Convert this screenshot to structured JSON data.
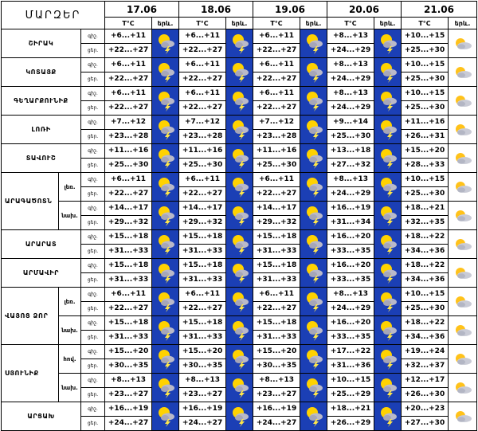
{
  "header": {
    "regions_label": "ՄԱՐԶԵՐ",
    "days": [
      {
        "date": "17.06",
        "temp_label": "T°C",
        "phen_label": "երև."
      },
      {
        "date": "18.06",
        "temp_label": "T°C",
        "phen_label": "երև."
      },
      {
        "date": "19.06",
        "temp_label": "T°C",
        "phen_label": "երև."
      },
      {
        "date": "20.06",
        "temp_label": "T°C",
        "phen_label": "երև."
      },
      {
        "date": "21.06",
        "temp_label": "T°C",
        "phen_label": "երև."
      }
    ]
  },
  "period_labels": {
    "night": "գիշ.",
    "day": "ցեր."
  },
  "icons": {
    "storm": "sun-cloud-lightning-icon",
    "partly_cloudy": "sun-cloud-icon"
  },
  "colors": {
    "icon_bg": "#1b3fb5",
    "sun": "#ffd200",
    "cloud": "#b9b9c9"
  },
  "regions": [
    {
      "name": "ՇԻՐԱԿ",
      "subs": [
        {
          "label": "",
          "night": "+6...+11",
          "day": "+22...+27"
        }
      ],
      "days": [
        [
          "+6...+11",
          "+22...+27"
        ],
        [
          "+6...+11",
          "+22...+27"
        ],
        [
          "+6...+11",
          "+22...+27"
        ],
        [
          "+8...+13",
          "+24...+29"
        ],
        [
          "+10...+15",
          "+25...+30"
        ]
      ]
    },
    {
      "name": "ԿՈՏԱՅՔ",
      "rows": [
        [
          [
            "+6...+11",
            "+22...+27"
          ],
          [
            "+6...+11",
            "+22...+27"
          ],
          [
            "+6...+11",
            "+22...+27"
          ],
          [
            "+8...+13",
            "+24...+29"
          ],
          [
            "+10...+15",
            "+25...+30"
          ]
        ]
      ]
    },
    {
      "name": "ԳԵՂԱՐՔՈՒՆԻՔ",
      "rows": [
        [
          [
            "+6...+11",
            "+22...+27"
          ],
          [
            "+6...+11",
            "+22...+27"
          ],
          [
            "+6...+11",
            "+22...+27"
          ],
          [
            "+8...+13",
            "+24...+29"
          ],
          [
            "+10...+15",
            "+25...+30"
          ]
        ]
      ]
    },
    {
      "name": "ԼՈՌԻ",
      "rows": [
        [
          [
            "+7...+12",
            "+23...+28"
          ],
          [
            "+7...+12",
            "+23...+28"
          ],
          [
            "+7...+12",
            "+23...+28"
          ],
          [
            "+9...+14",
            "+25...+30"
          ],
          [
            "+11...+16",
            "+26...+31"
          ]
        ]
      ]
    },
    {
      "name": "ՏԱՎՈՒՇ",
      "rows": [
        [
          [
            "+11...+16",
            "+25...+30"
          ],
          [
            "+11...+16",
            "+25...+30"
          ],
          [
            "+11...+16",
            "+25...+30"
          ],
          [
            "+13...+18",
            "+27...+32"
          ],
          [
            "+15...+20",
            "+28...+33"
          ]
        ]
      ]
    },
    {
      "name": "ԱՐԱԳԱԾՈՏՆ",
      "subs": [
        "լեռ.",
        "նախ."
      ],
      "rows": [
        [
          [
            "+6...+11",
            "+22...+27"
          ],
          [
            "+6...+11",
            "+22...+27"
          ],
          [
            "+6...+11",
            "+22...+27"
          ],
          [
            "+8...+13",
            "+24...+29"
          ],
          [
            "+10...+15",
            "+25...+30"
          ]
        ],
        [
          [
            "+14...+17",
            "+29...+32"
          ],
          [
            "+14...+17",
            "+29...+32"
          ],
          [
            "+14...+17",
            "+29...+32"
          ],
          [
            "+16...+19",
            "+31...+34"
          ],
          [
            "+18...+21",
            "+32...+35"
          ]
        ]
      ]
    },
    {
      "name": "ԱՐԱՐԱՏ",
      "rows": [
        [
          [
            "+15...+18",
            "+31...+33"
          ],
          [
            "+15...+18",
            "+31...+33"
          ],
          [
            "+15...+18",
            "+31...+33"
          ],
          [
            "+16...+20",
            "+33...+35"
          ],
          [
            "+18...+22",
            "+34...+36"
          ]
        ]
      ]
    },
    {
      "name": "ԱՐՄԱՎԻՐ",
      "rows": [
        [
          [
            "+15...+18",
            "+31...+33"
          ],
          [
            "+15...+18",
            "+31...+33"
          ],
          [
            "+15...+18",
            "+31...+33"
          ],
          [
            "+16...+20",
            "+33...+35"
          ],
          [
            "+18...+22",
            "+34...+36"
          ]
        ]
      ]
    },
    {
      "name": "ՎԱՅՈՑ ՁՈՐ",
      "subs": [
        "լեռ.",
        "նախ."
      ],
      "rows": [
        [
          [
            "+6...+11",
            "+22...+27"
          ],
          [
            "+6...+11",
            "+22...+27"
          ],
          [
            "+6...+11",
            "+22...+27"
          ],
          [
            "+8...+13",
            "+24...+29"
          ],
          [
            "+10...+15",
            "+25...+30"
          ]
        ],
        [
          [
            "+15...+18",
            "+31...+33"
          ],
          [
            "+15...+18",
            "+31...+33"
          ],
          [
            "+15...+18",
            "+31...+33"
          ],
          [
            "+16...+20",
            "+33...+35"
          ],
          [
            "+18...+22",
            "+34...+36"
          ]
        ]
      ]
    },
    {
      "name": "ՍՅՈՒՆԻՔ",
      "subs": [
        "հով.",
        "նախ."
      ],
      "rows": [
        [
          [
            "+15...+20",
            "+30...+35"
          ],
          [
            "+15...+20",
            "+30...+35"
          ],
          [
            "+15...+20",
            "+30...+35"
          ],
          [
            "+17...+22",
            "+31...+36"
          ],
          [
            "+19...+24",
            "+32...+37"
          ]
        ],
        [
          [
            "+8...+13",
            "+23...+27"
          ],
          [
            "+8...+13",
            "+23...+27"
          ],
          [
            "+8...+13",
            "+23...+27"
          ],
          [
            "+10...+15",
            "+25...+29"
          ],
          [
            "+12...+17",
            "+26...+30"
          ]
        ]
      ]
    },
    {
      "name": "ԱՐՑԱԽ",
      "rows": [
        [
          [
            "+16...+19",
            "+24...+27"
          ],
          [
            "+16...+19",
            "+24...+27"
          ],
          [
            "+16...+19",
            "+24...+27"
          ],
          [
            "+18...+21",
            "+26...+29"
          ],
          [
            "+20...+23",
            "+27...+30"
          ]
        ]
      ]
    }
  ]
}
